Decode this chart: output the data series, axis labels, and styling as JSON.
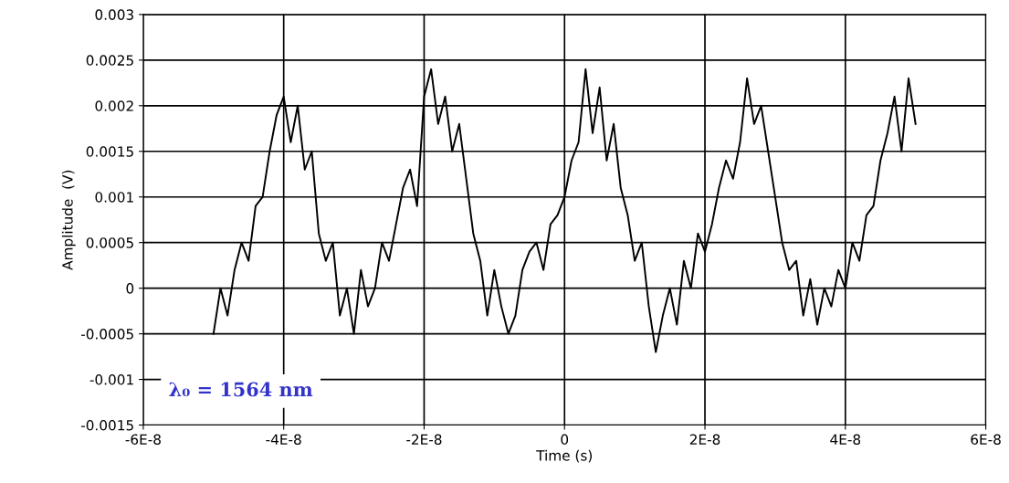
{
  "chart_data": {
    "type": "line",
    "xlabel": "Time (s)",
    "ylabel": "Amplitude  (V)",
    "annotations": [
      "λ₀ = 1564 nm"
    ],
    "x": [
      -5e-08,
      -4.9e-08,
      -4.8e-08,
      -4.7e-08,
      -4.6e-08,
      -4.5e-08,
      -4.4e-08,
      -4.3e-08,
      -4.2e-08,
      -4.1e-08,
      -4e-08,
      -3.9e-08,
      -3.8e-08,
      -3.7e-08,
      -3.6e-08,
      -3.5e-08,
      -3.4e-08,
      -3.3e-08,
      -3.2e-08,
      -3.1e-08,
      -3e-08,
      -2.9e-08,
      -2.8e-08,
      -2.7e-08,
      -2.6e-08,
      -2.5e-08,
      -2.4e-08,
      -2.3e-08,
      -2.2e-08,
      -2.1e-08,
      -2e-08,
      -1.9e-08,
      -1.8e-08,
      -1.7e-08,
      -1.6e-08,
      -1.5e-08,
      -1.4e-08,
      -1.3e-08,
      -1.2e-08,
      -1.1e-08,
      -1e-08,
      -9e-09,
      -8e-09,
      -7e-09,
      -6e-09,
      -5e-09,
      -4e-09,
      -3e-09,
      -2e-09,
      -1e-09,
      0,
      1e-09,
      2e-09,
      3e-09,
      4e-09,
      5e-09,
      6e-09,
      7e-09,
      8e-09,
      9e-09,
      1e-08,
      1.1e-08,
      1.2e-08,
      1.3e-08,
      1.4e-08,
      1.5e-08,
      1.6e-08,
      1.7e-08,
      1.8e-08,
      1.9e-08,
      2e-08,
      2.1e-08,
      2.2e-08,
      2.3e-08,
      2.4e-08,
      2.5e-08,
      2.6e-08,
      2.7e-08,
      2.8e-08,
      2.9e-08,
      3e-08,
      3.1e-08,
      3.2e-08,
      3.3e-08,
      3.4e-08,
      3.5e-08,
      3.6e-08,
      3.7e-08,
      3.8e-08,
      3.9e-08,
      4e-08,
      4.1e-08,
      4.2e-08,
      4.3e-08,
      4.4e-08,
      4.5e-08,
      4.6e-08,
      4.7e-08,
      4.8e-08,
      4.9e-08,
      5e-08
    ],
    "series": [
      {
        "color": "#000000",
        "values": [
          -0.0005,
          0.0,
          -0.0003,
          0.0002,
          0.0005,
          0.0003,
          0.0009,
          0.001,
          0.0015,
          0.0019,
          0.0021,
          0.0016,
          0.002,
          0.0013,
          0.0015,
          0.0006,
          0.0003,
          0.0005,
          -0.0003,
          0.0,
          -0.0005,
          0.0002,
          -0.0002,
          0.0,
          0.0005,
          0.0003,
          0.0007,
          0.0011,
          0.0013,
          0.0009,
          0.0021,
          0.0024,
          0.0018,
          0.0021,
          0.0015,
          0.0018,
          0.0012,
          0.0006,
          0.0003,
          -0.0003,
          0.0002,
          -0.0002,
          -0.0005,
          -0.0003,
          0.0002,
          0.0004,
          0.0005,
          0.0002,
          0.0007,
          0.0008,
          0.001,
          0.0014,
          0.0016,
          0.0024,
          0.0017,
          0.0022,
          0.0014,
          0.0018,
          0.0011,
          0.0008,
          0.0003,
          0.0005,
          -0.0002,
          -0.0007,
          -0.0003,
          0.0,
          -0.0004,
          0.0003,
          0.0,
          0.0006,
          0.0004,
          0.0007,
          0.0011,
          0.0014,
          0.0012,
          0.0016,
          0.0023,
          0.0018,
          0.002,
          0.0015,
          0.001,
          0.0005,
          0.0002,
          0.0003,
          -0.0003,
          0.0001,
          -0.0004,
          0.0,
          -0.0002,
          0.0002,
          0.0,
          0.0005,
          0.0003,
          0.0008,
          0.0009,
          0.0014,
          0.0017,
          0.0021,
          0.0015,
          0.0023,
          0.0018
        ]
      }
    ],
    "xlim": [
      -6e-08,
      6e-08
    ],
    "xticks": [
      {
        "value": -6e-08,
        "label": "-6E-8"
      },
      {
        "value": -4e-08,
        "label": "-4E-8"
      },
      {
        "value": -2e-08,
        "label": "-2E-8"
      },
      0,
      {
        "value": 2e-08,
        "label": "2E-8"
      },
      {
        "value": 4e-08,
        "label": "4E-8"
      },
      {
        "value": 6e-08,
        "label": "6E-8"
      }
    ],
    "ylim": [
      -0.0015,
      0.003
    ],
    "yticks": [
      -0.0015,
      -0.001,
      -0.0005,
      0,
      0.0005,
      0.001,
      0.0015,
      0.002,
      0.0025,
      0.003
    ],
    "grid": true,
    "marker": "none",
    "line_style": "solid"
  }
}
